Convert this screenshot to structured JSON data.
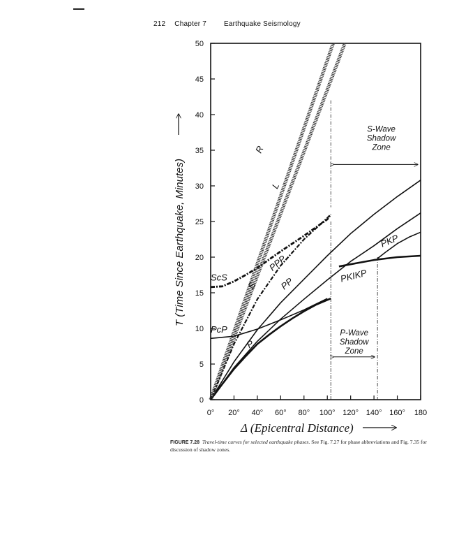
{
  "header": {
    "page_number": "212",
    "chapter": "Chapter 7",
    "chapter_title": "Earthquake Seismology"
  },
  "caption": {
    "label": "FIGURE 7.28",
    "italic": "Travel-time curves for selected earthquake phases.",
    "text": "See Fig. 7.27 for phase abbreviations and Fig. 7.35 for discussion of shadow zones."
  },
  "chart_data": {
    "type": "line",
    "xlabel": "Δ (Epicentral Distance)",
    "ylabel": "T (Time Since Earthquake, Minutes)",
    "xlim": [
      0,
      180
    ],
    "ylim": [
      0,
      50
    ],
    "x_ticks": [
      "0°",
      "20°",
      "40°",
      "60°",
      "80°",
      "100°",
      "120°",
      "140°",
      "160°",
      "180"
    ],
    "y_ticks": [
      "0",
      "5",
      "10",
      "15",
      "20",
      "25",
      "30",
      "35",
      "40",
      "45",
      "50"
    ],
    "grid": false,
    "series": [
      {
        "name": "P",
        "style": "solid-thick",
        "x": [
          0,
          10,
          20,
          30,
          40,
          50,
          60,
          70,
          80,
          90,
          103
        ],
        "y": [
          0,
          2.2,
          4.3,
          6.1,
          7.8,
          9.1,
          10.3,
          11.4,
          12.4,
          13.3,
          14.2
        ]
      },
      {
        "name": "PP",
        "style": "solid",
        "x": [
          0,
          20,
          40,
          60,
          80,
          100,
          120,
          140,
          160,
          180
        ],
        "y": [
          0,
          4.5,
          8.2,
          11.3,
          14.1,
          16.8,
          19.4,
          21.6,
          24.0,
          26.2
        ]
      },
      {
        "name": "PPP",
        "style": "solid",
        "x": [
          0,
          20,
          40,
          60,
          80,
          100,
          120,
          140,
          160,
          180
        ],
        "y": [
          0,
          5.3,
          9.8,
          13.6,
          16.9,
          20.2,
          23.3,
          26.0,
          28.5,
          30.8
        ]
      },
      {
        "name": "PcP",
        "style": "solid",
        "x": [
          0,
          20,
          40,
          60,
          80,
          100
        ],
        "y": [
          8.6,
          8.9,
          9.9,
          11.2,
          12.6,
          14.2
        ]
      },
      {
        "name": "PKIKP",
        "style": "solid-thick",
        "x": [
          110,
          120,
          130,
          140,
          150,
          160,
          170,
          180
        ],
        "y": [
          18.7,
          19.0,
          19.3,
          19.6,
          19.8,
          20.0,
          20.1,
          20.2
        ]
      },
      {
        "name": "PKP",
        "style": "solid",
        "x": [
          143,
          150,
          160,
          170,
          180
        ],
        "y": [
          19.8,
          20.7,
          21.9,
          22.8,
          23.5
        ]
      },
      {
        "name": "S",
        "style": "dash-dot",
        "x": [
          0,
          20,
          40,
          60,
          80,
          100,
          103
        ],
        "y": [
          0,
          7.8,
          14.1,
          18.8,
          22.5,
          25.5,
          26.0
        ]
      },
      {
        "name": "ScS",
        "style": "dash-dot-thick",
        "x": [
          0,
          10,
          20,
          30,
          40,
          60,
          80,
          100,
          103
        ],
        "y": [
          15.8,
          15.9,
          16.6,
          17.5,
          18.5,
          20.8,
          23.0,
          25.3,
          26.0
        ]
      },
      {
        "name": "L",
        "style": "hatched",
        "x": [
          0,
          115
        ],
        "y": [
          0,
          50
        ]
      },
      {
        "name": "R",
        "style": "hatched",
        "x": [
          0,
          105
        ],
        "y": [
          0,
          50
        ]
      }
    ],
    "annotations": [
      {
        "text": "S-Wave Shadow Zone",
        "x_range": [
          103,
          180
        ]
      },
      {
        "text": "P-Wave Shadow Zone",
        "x_range": [
          103,
          143
        ]
      }
    ]
  }
}
